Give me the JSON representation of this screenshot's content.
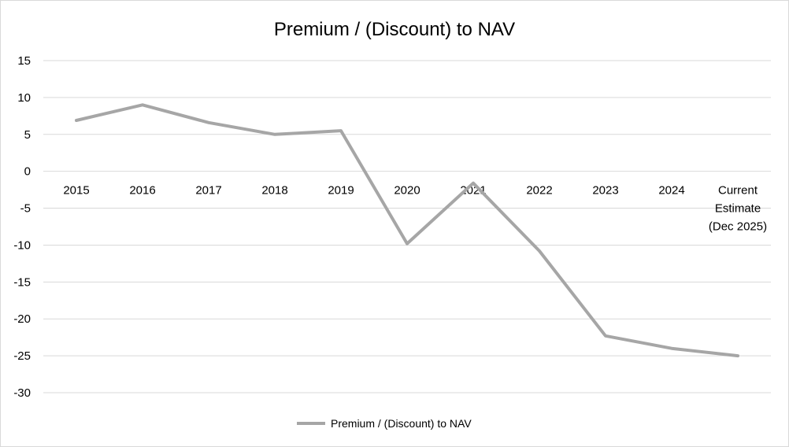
{
  "chart_data": {
    "type": "line",
    "title": "Premium / (Discount) to NAV",
    "categories": [
      "2015",
      "2016",
      "2017",
      "2018",
      "2019",
      "2020",
      "2021",
      "2022",
      "2023",
      "2024",
      "Current Estimate (Dec 2025)"
    ],
    "category_lines": [
      [
        "2015"
      ],
      [
        "2016"
      ],
      [
        "2017"
      ],
      [
        "2018"
      ],
      [
        "2019"
      ],
      [
        "2020"
      ],
      [
        "2021"
      ],
      [
        "2022"
      ],
      [
        "2023"
      ],
      [
        "2024"
      ],
      [
        "Current",
        "Estimate",
        "(Dec 2025)"
      ]
    ],
    "series": [
      {
        "name": "Premium / (Discount) to NAV",
        "values": [
          6.9,
          9.0,
          6.6,
          5.0,
          5.5,
          -9.8,
          -1.6,
          -10.8,
          -22.3,
          -24.0,
          -25.0
        ]
      }
    ],
    "ylim": [
      -30,
      15
    ],
    "yticks": [
      15,
      10,
      5,
      0,
      -5,
      -10,
      -15,
      -20,
      -25,
      -30
    ],
    "xlabel": "",
    "ylabel": "",
    "grid": true,
    "legend": "bottom",
    "colors": {
      "line": "#a6a6a6",
      "grid": "#d9d9d9"
    }
  }
}
